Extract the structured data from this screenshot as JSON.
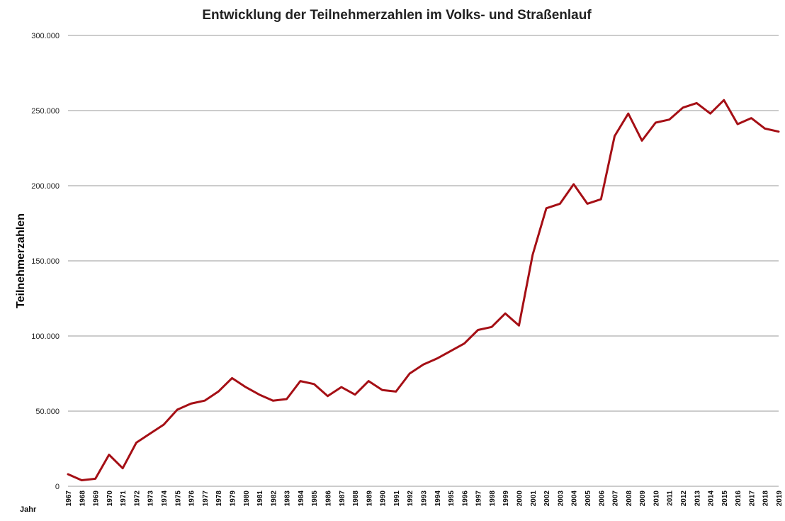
{
  "chart_data": {
    "type": "line",
    "title": "Entwicklung der Teilnehmerzahlen im Volks- und Straßenlauf",
    "ylabel": "Teilnehmerzahlen",
    "xlabel": "Jahr",
    "ylim": [
      0,
      300000
    ],
    "yticks": [
      0,
      50000,
      100000,
      150000,
      200000,
      250000,
      300000
    ],
    "ytick_labels": [
      "0",
      "50.000",
      "100.000",
      "150.000",
      "200.000",
      "250.000",
      "300.000"
    ],
    "grid": true,
    "legend": "none",
    "colors": {
      "series": "#a50f15",
      "grid": "#9a9a9a"
    },
    "categories": [
      "1967",
      "1968",
      "1969",
      "1970",
      "1971",
      "1972",
      "1973",
      "1974",
      "1975",
      "1976",
      "1977",
      "1978",
      "1979",
      "1980",
      "1981",
      "1982",
      "1983",
      "1984",
      "1985",
      "1986",
      "1987",
      "1988",
      "1989",
      "1990",
      "1991",
      "1992",
      "1993",
      "1994",
      "1995",
      "1996",
      "1997",
      "1998",
      "1999",
      "2000",
      "2001",
      "2002",
      "2003",
      "2004",
      "2005",
      "2006",
      "2007",
      "2008",
      "2009",
      "2010",
      "2011",
      "2012",
      "2013",
      "2014",
      "2015",
      "2016",
      "2017",
      "2018",
      "2019"
    ],
    "series": [
      {
        "values": [
          8000,
          4000,
          5000,
          21000,
          12000,
          29000,
          35000,
          41000,
          51000,
          55000,
          57000,
          63000,
          72000,
          66000,
          61000,
          57000,
          58000,
          70000,
          68000,
          60000,
          66000,
          61000,
          70000,
          64000,
          63000,
          75000,
          81000,
          85000,
          90000,
          95000,
          104000,
          106000,
          115000,
          107000,
          154000,
          185000,
          188000,
          201000,
          188000,
          191000,
          233000,
          248000,
          230000,
          242000,
          244000,
          252000,
          255000,
          248000,
          257000,
          241000,
          245000,
          238000,
          236000
        ]
      }
    ]
  }
}
